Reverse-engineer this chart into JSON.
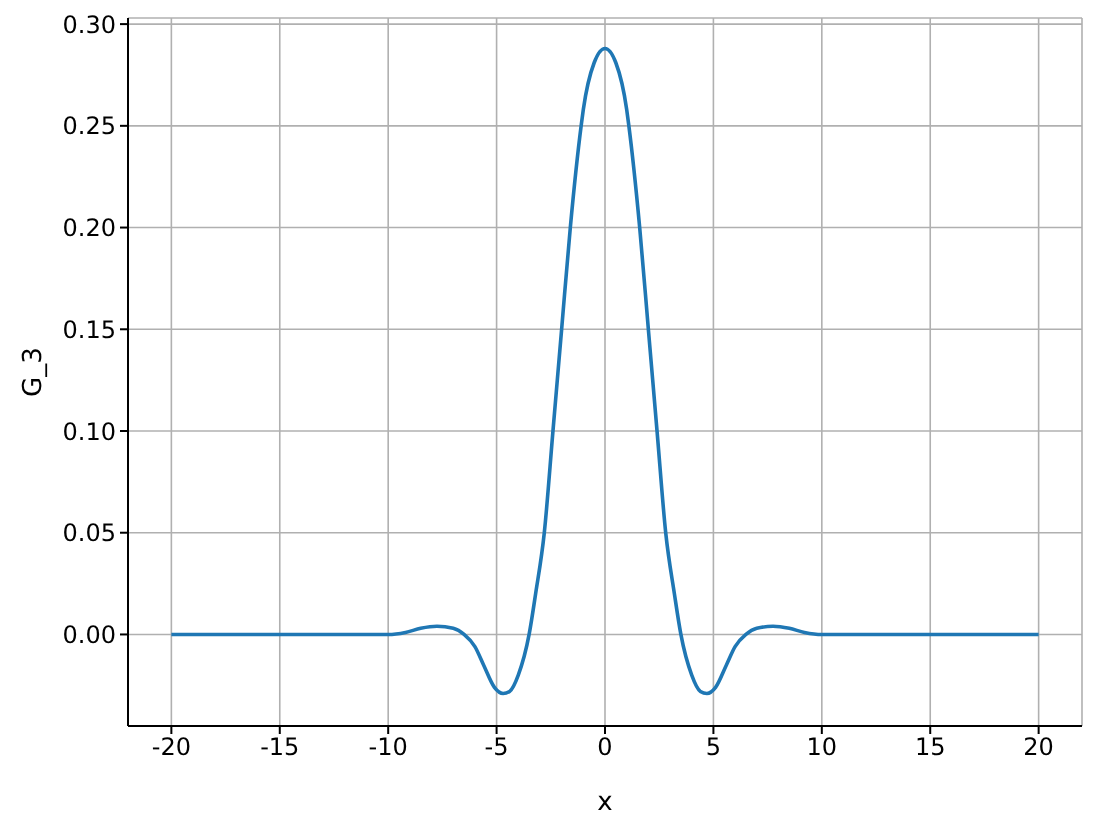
{
  "chart_data": {
    "type": "line",
    "xlabel": "x",
    "ylabel": "G_3",
    "x": [
      -20,
      -13,
      -12,
      -11,
      -10,
      -9.2,
      -8.5,
      -7.75,
      -7,
      -6.5,
      -6,
      -5.6,
      -5.1,
      -4.7,
      -4.4,
      -4,
      -3.5,
      -3.2,
      -2.8,
      -2.4,
      -2,
      -1.6,
      -1.1,
      -1,
      -0.5,
      0,
      0.5,
      1,
      1.1,
      1.6,
      2,
      2.4,
      2.8,
      3.2,
      3.5,
      4,
      4.4,
      4.7,
      5.1,
      5.6,
      6,
      6.5,
      7,
      7.75,
      8.5,
      9.2,
      10,
      11,
      12,
      13,
      20
    ],
    "series": [
      {
        "color": "#1f77b4",
        "values": [
          0,
          0,
          0,
          0,
          0,
          0.001,
          0.003,
          0.004,
          0.003,
          0,
          -0.006,
          -0.015,
          -0.026,
          -0.029,
          -0.028,
          -0.02,
          0,
          0.02,
          0.05,
          0.1,
          0.15,
          0.2,
          0.25,
          0.258,
          0.281,
          0.288,
          0.281,
          0.258,
          0.25,
          0.2,
          0.15,
          0.1,
          0.05,
          0.02,
          0,
          -0.02,
          -0.028,
          -0.029,
          -0.026,
          -0.015,
          -0.006,
          0,
          0.003,
          0.004,
          0.003,
          0.001,
          0,
          0,
          0,
          0,
          0
        ]
      }
    ],
    "xlim": [
      -22,
      22
    ],
    "xticks": [
      -20,
      -15,
      -10,
      -5,
      0,
      5,
      10,
      15,
      20
    ],
    "ylim": [
      -0.045,
      0.303
    ],
    "yticks": [
      {
        "value": 0,
        "label": "0.00"
      },
      {
        "value": 0.05,
        "label": "0.05"
      },
      {
        "value": 0.1,
        "label": "0.10"
      },
      {
        "value": 0.15,
        "label": "0.15"
      },
      {
        "value": 0.2,
        "label": "0.20"
      },
      {
        "value": 0.25,
        "label": "0.25"
      },
      {
        "value": 0.3,
        "label": "0.30"
      }
    ],
    "grid": true,
    "marker": "none",
    "line_style": "solid"
  }
}
